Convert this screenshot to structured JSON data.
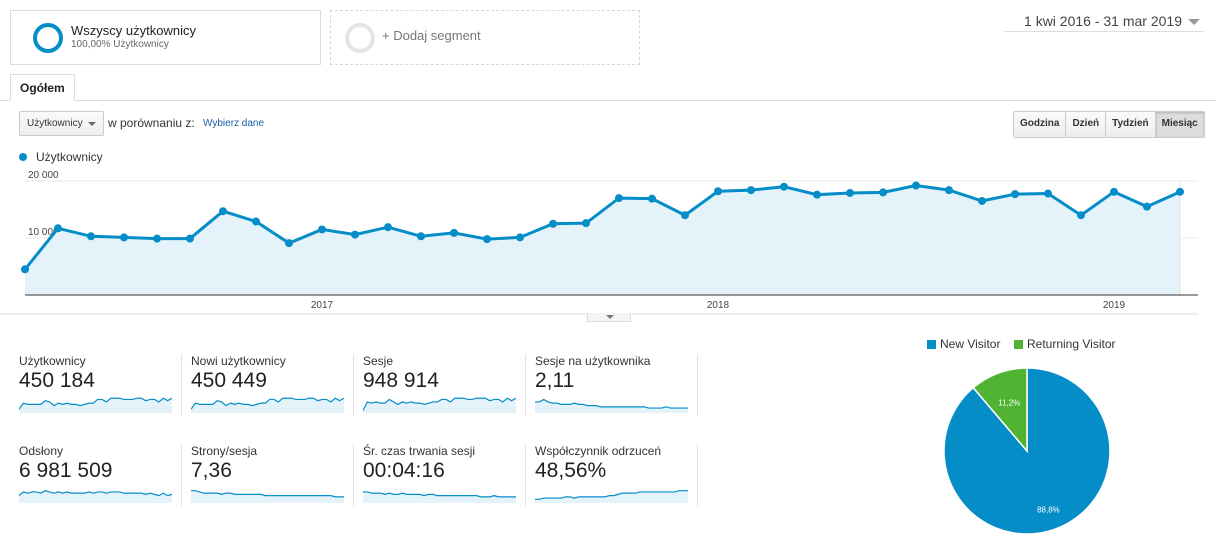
{
  "segments": {
    "primary": {
      "name": "Wszyscy użytkownicy",
      "sub": "100,00% Użytkownicy"
    },
    "add": {
      "label": "+ Dodaj segment"
    }
  },
  "date_range": "1 kwi 2016 - 31 mar 2019",
  "tabs": [
    {
      "label": "Ogółem"
    }
  ],
  "controls": {
    "metric_select": "Użytkownicy",
    "compare_text": "w porównaniu z:",
    "choose_link": "Wybierz dane",
    "granularity": [
      "Godzina",
      "Dzień",
      "Tydzień",
      "Miesiąc"
    ],
    "granularity_active": "Miesiąc"
  },
  "colors": {
    "accent": "#058dc7",
    "accent_fill": "#e4f2fa",
    "returning": "#50b432"
  },
  "chart_data": {
    "type": "area",
    "series": [
      {
        "name": "Użytkownicy",
        "values": [
          4500,
          11700,
          10300,
          10100,
          9900,
          9900,
          14700,
          12900,
          9100,
          11500,
          10600,
          11900,
          10300,
          10900,
          9800,
          10100,
          12500,
          12600,
          17000,
          16900,
          14000,
          18200,
          18400,
          19000,
          17600,
          17900,
          18000,
          19200,
          18400,
          16500,
          17700,
          17800,
          14000,
          18100,
          15500,
          18100
        ]
      }
    ],
    "x_start": "2016-04",
    "x_tick_labels": [
      "2017",
      "2018",
      "2019"
    ],
    "y_tick_labels": [
      "20 000",
      "10 000"
    ],
    "ylim": [
      0,
      20000
    ],
    "grid": true
  },
  "scorecards": [
    {
      "label": "Użytkownicy",
      "value": "450 184",
      "spark": [
        3,
        8,
        7,
        7,
        7,
        7,
        10,
        9,
        6,
        8,
        7,
        8,
        7,
        7,
        6,
        7,
        8,
        8,
        11,
        11,
        9,
        12,
        12,
        12,
        11,
        11,
        11,
        12,
        12,
        10,
        11,
        11,
        9,
        12,
        10,
        12
      ]
    },
    {
      "label": "Nowi użytkownicy",
      "value": "450 449",
      "spark": [
        3,
        8,
        7,
        7,
        7,
        7,
        10,
        9,
        6,
        8,
        7,
        8,
        7,
        7,
        6,
        7,
        8,
        8,
        11,
        11,
        9,
        12,
        12,
        12,
        11,
        11,
        11,
        12,
        12,
        10,
        11,
        11,
        9,
        12,
        10,
        12
      ]
    },
    {
      "label": "Sesje",
      "value": "948 914",
      "spark": [
        2,
        9,
        8,
        9,
        8,
        8,
        11,
        9,
        7,
        9,
        8,
        9,
        8,
        8,
        7,
        8,
        9,
        9,
        11,
        11,
        9,
        12,
        12,
        12,
        11,
        11,
        12,
        12,
        12,
        10,
        11,
        11,
        9,
        12,
        10,
        12
      ]
    },
    {
      "label": "Sesje na użytkownika",
      "value": "2,11",
      "spark": [
        9,
        9,
        11,
        9,
        8,
        8,
        7,
        7,
        7,
        8,
        7,
        7,
        6,
        6,
        6,
        5,
        5,
        5,
        5,
        5,
        5,
        5,
        5,
        5,
        5,
        5,
        4,
        4,
        4,
        4,
        5,
        4,
        4,
        4,
        4,
        4
      ]
    },
    {
      "label": "Odsłony",
      "value": "6 981 509",
      "spark": [
        6,
        9,
        8,
        9,
        9,
        8,
        10,
        9,
        8,
        9,
        8,
        9,
        8,
        8,
        8,
        8,
        9,
        8,
        9,
        9,
        8,
        9,
        9,
        9,
        8,
        8,
        8,
        8,
        8,
        7,
        8,
        7,
        6,
        8,
        6,
        7
      ]
    },
    {
      "label": "Strony/sesja",
      "value": "7,36",
      "spark": [
        10,
        10,
        9,
        8,
        8,
        8,
        8,
        7,
        8,
        8,
        7,
        7,
        7,
        7,
        7,
        7,
        7,
        6,
        6,
        6,
        6,
        6,
        6,
        6,
        6,
        6,
        6,
        6,
        6,
        6,
        6,
        6,
        6,
        5,
        5,
        5
      ]
    },
    {
      "label": "Śr. czas trwania sesji",
      "value": "00:04:16",
      "spark": [
        9,
        9,
        8,
        8,
        8,
        7,
        8,
        7,
        7,
        8,
        7,
        7,
        7,
        7,
        6,
        7,
        7,
        6,
        6,
        6,
        6,
        6,
        6,
        6,
        6,
        6,
        6,
        5,
        5,
        5,
        6,
        5,
        5,
        5,
        5,
        5
      ]
    },
    {
      "label": "Współczynnik odrzuceń",
      "value": "48,56%",
      "spark": [
        3,
        3,
        4,
        4,
        4,
        4,
        4,
        5,
        5,
        4,
        5,
        5,
        5,
        5,
        5,
        5,
        5,
        6,
        6,
        7,
        8,
        8,
        8,
        8,
        9,
        9,
        9,
        9,
        9,
        9,
        9,
        9,
        9,
        10,
        10,
        10
      ]
    }
  ],
  "pie": {
    "slices": [
      {
        "name": "New Visitor",
        "value": 88.8,
        "label": "88,8%",
        "color": "#058dc7"
      },
      {
        "name": "Returning Visitor",
        "value": 11.2,
        "label": "11,2%",
        "color": "#50b432"
      }
    ]
  }
}
